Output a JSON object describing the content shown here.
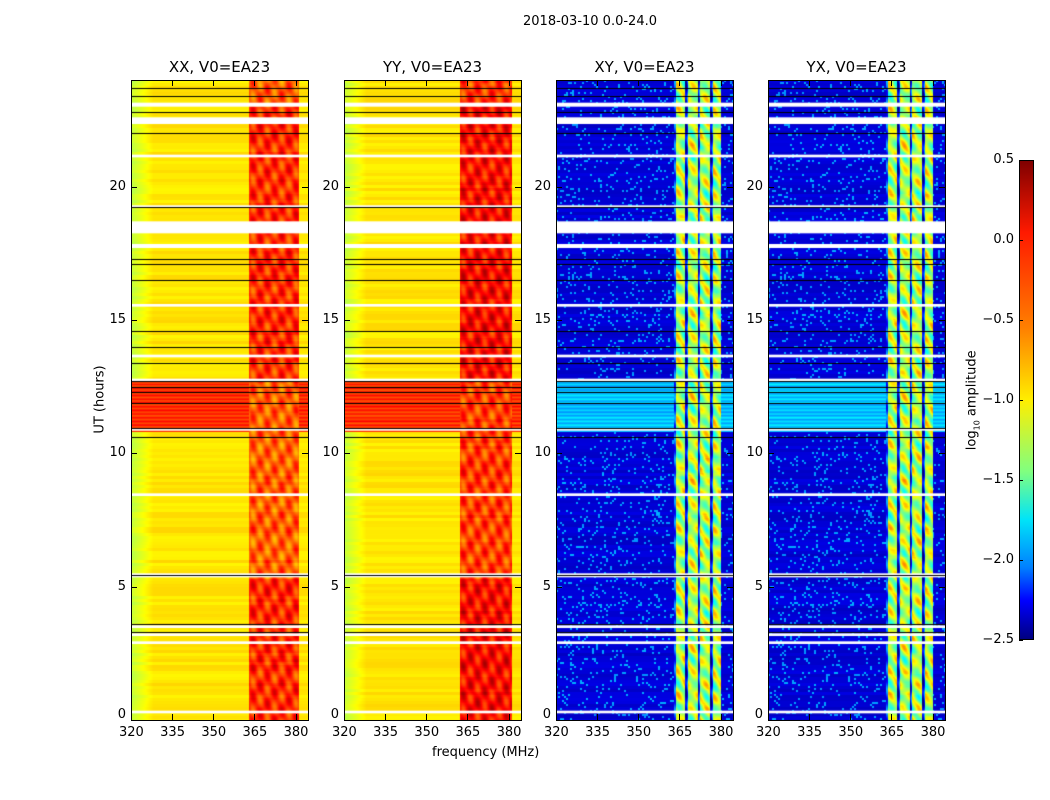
{
  "chart_data": {
    "type": "heatmap",
    "title": "2018-03-10 0.0-24.0",
    "xlabel": "frequency (MHz)",
    "ylabel": "UT (hours)",
    "xlim": [
      320,
      384.5
    ],
    "ylim": [
      0,
      24
    ],
    "xticks": [
      320,
      335,
      350,
      365,
      380
    ],
    "yticks": [
      0,
      5,
      10,
      15,
      20
    ],
    "colorbar": {
      "label_prefix": "log",
      "label_sub": "10",
      "label_suffix": " amplitude",
      "range": [
        -2.5,
        0.5
      ],
      "ticks": [
        "0.5",
        "0.0",
        "−0.5",
        "−1.0",
        "−1.5",
        "−2.0",
        "−2.5"
      ],
      "tick_values": [
        0.5,
        0.0,
        -0.5,
        -1.0,
        -1.5,
        -2.0,
        -2.5
      ],
      "colormap": "jet"
    },
    "flagged_hours_white": [
      [
        0.25,
        0.35
      ],
      [
        2.85,
        2.95
      ],
      [
        3.15,
        3.25
      ],
      [
        3.45,
        3.55
      ],
      [
        5.35,
        5.5
      ],
      [
        8.4,
        8.5
      ],
      [
        10.85,
        10.95
      ],
      [
        12.7,
        12.8
      ],
      [
        13.6,
        13.7
      ],
      [
        15.5,
        15.6
      ],
      [
        17.7,
        17.85
      ],
      [
        18.25,
        18.7
      ],
      [
        19.2,
        19.3
      ],
      [
        21.1,
        21.2
      ],
      [
        22.35,
        22.6
      ],
      [
        23.0,
        23.15
      ]
    ],
    "black_lines_hours": [
      3.3,
      3.6,
      5.45,
      10.6,
      10.95,
      11.9,
      12.3,
      12.5,
      12.7,
      13.4,
      14.0,
      14.6,
      16.5,
      17.1,
      17.3,
      19.25,
      22.0,
      22.8,
      23.4,
      23.7
    ],
    "panels": [
      {
        "title": "XX, V0=EA23",
        "background": -0.6,
        "edge": -0.85,
        "rfi_band": [
          363,
          381
        ],
        "rfi_level": -0.2,
        "active_hours": [
          10.8,
          12.7
        ],
        "active_level": -0.05,
        "cross": false
      },
      {
        "title": "YY, V0=EA23",
        "background": -0.6,
        "edge": -0.85,
        "rfi_band": [
          362,
          381
        ],
        "rfi_level": -0.1,
        "active_hours": [
          10.8,
          12.7
        ],
        "active_level": -0.05,
        "cross": false
      },
      {
        "title": "XY, V0=EA23",
        "background": -2.3,
        "edge": -2.3,
        "rfi_band": [
          363,
          380
        ],
        "rfi_level": -0.9,
        "active_hours": [
          10.8,
          12.7
        ],
        "active_level": -1.6,
        "cross": true
      },
      {
        "title": "YX, V0=EA23",
        "background": -2.3,
        "edge": -2.3,
        "rfi_band": [
          363,
          380
        ],
        "rfi_level": -0.9,
        "active_hours": [
          10.8,
          12.7
        ],
        "active_level": -1.6,
        "cross": true
      }
    ]
  }
}
